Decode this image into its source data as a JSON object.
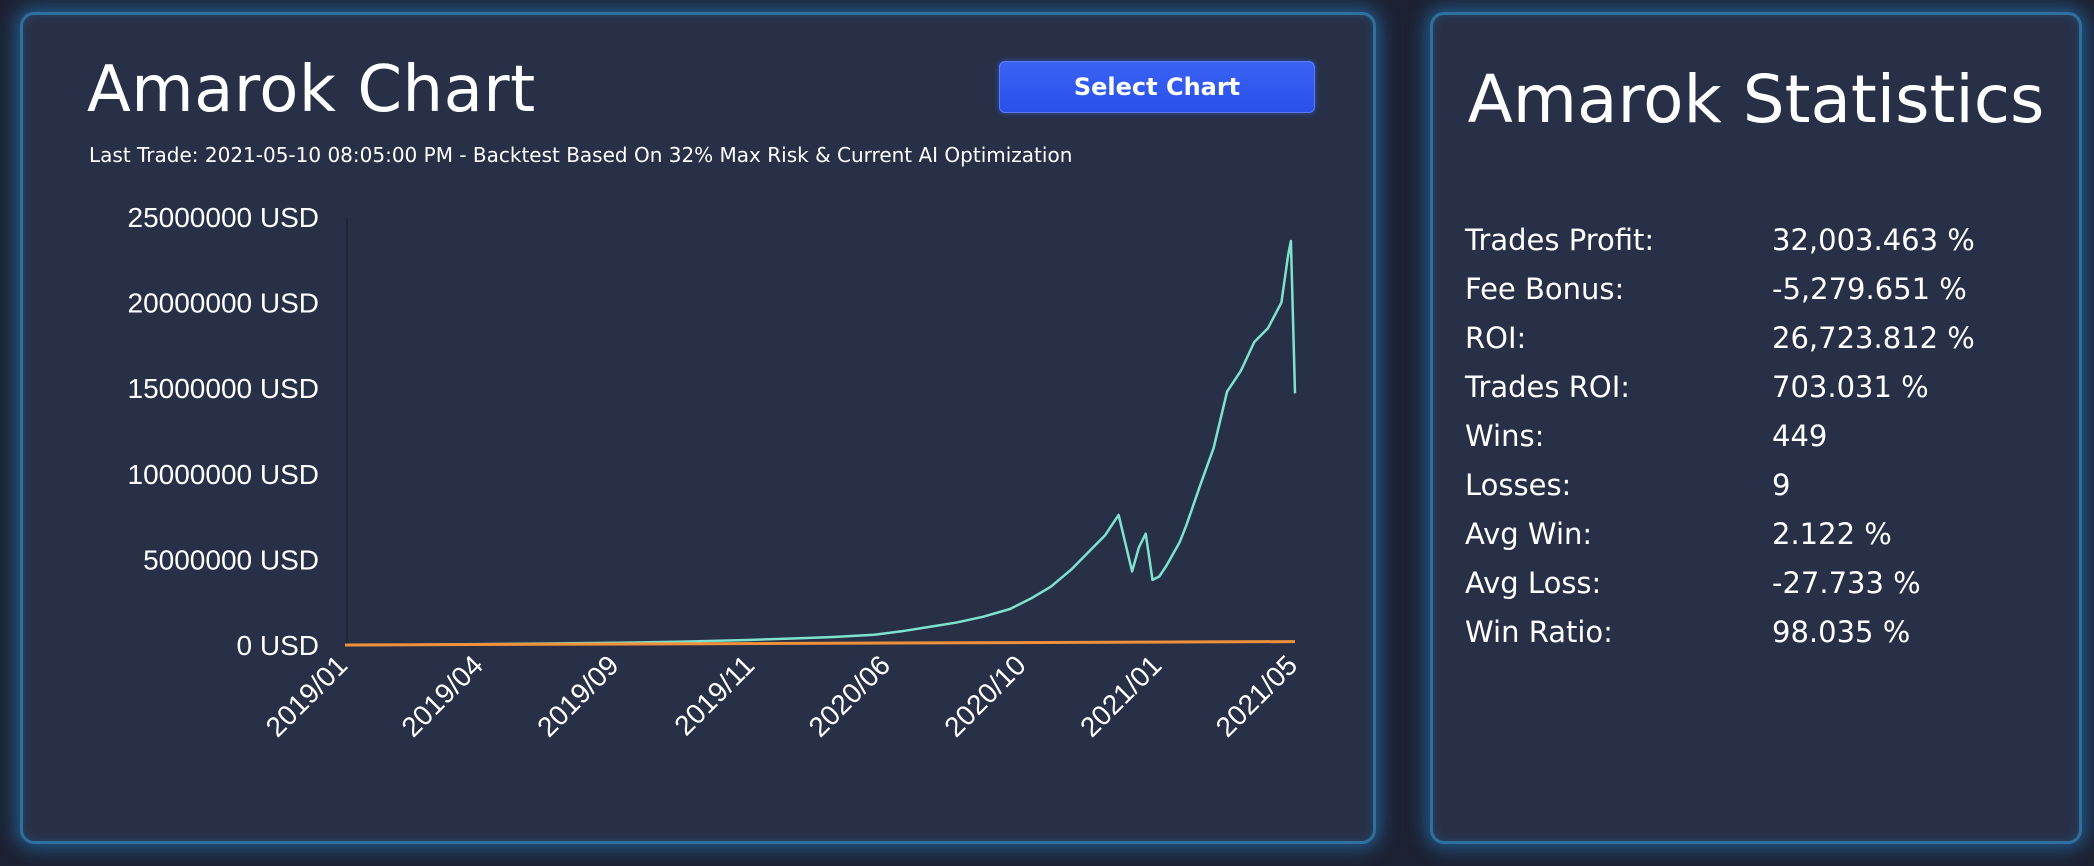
{
  "chart_panel": {
    "title": "Amarok Chart",
    "subtitle": "Last Trade: 2021-05-10 08:05:00 PM - Backtest Based On 32% Max Risk & Current AI Optimization",
    "select_button_label": "Select Chart"
  },
  "chart_data": {
    "type": "line",
    "title": "",
    "xlabel": "",
    "ylabel": "",
    "ylim": [
      0,
      25000000
    ],
    "y_ticks": [
      "0 USD",
      "5000000 USD",
      "10000000 USD",
      "15000000 USD",
      "20000000 USD",
      "25000000 USD"
    ],
    "x_ticks": [
      "2019/01",
      "2019/04",
      "2019/09",
      "2019/11",
      "2020/06",
      "2020/10",
      "2021/01",
      "2021/05"
    ],
    "grid": false,
    "legend": "none",
    "series": [
      {
        "color": "#7de3cf",
        "x": [
          0,
          0.5,
          1,
          1.5,
          2,
          2.5,
          3,
          3.3,
          3.6,
          3.9,
          4.1,
          4.3,
          4.5,
          4.7,
          4.9,
          5.05,
          5.2,
          5.35,
          5.5,
          5.6,
          5.7,
          5.8,
          5.85,
          5.9,
          5.95,
          6.0,
          6.05,
          6.1,
          6.15,
          6.2,
          6.3,
          6.4,
          6.5,
          6.6,
          6.7,
          6.8,
          6.9,
          6.95,
          6.97,
          7.0
        ],
        "values": [
          0,
          20000,
          50000,
          90000,
          130000,
          200000,
          300000,
          380000,
          470000,
          600000,
          800000,
          1050000,
          1300000,
          1650000,
          2100000,
          2700000,
          3400000,
          4400000,
          5600000,
          6400000,
          7600000,
          4300000,
          5700000,
          6500000,
          3800000,
          4000000,
          4600000,
          5300000,
          6000000,
          7000000,
          9300000,
          11500000,
          14800000,
          16000000,
          17700000,
          18500000,
          20000000,
          22800000,
          23600000,
          14700000
        ]
      },
      {
        "color": "#f0913a",
        "x": [
          0,
          7.0
        ],
        "values": [
          0,
          200000
        ]
      }
    ]
  },
  "stats_panel": {
    "title": "Amarok Statistics",
    "rows": [
      {
        "label": "Trades Profit:",
        "value": "32,003.463 %"
      },
      {
        "label": "Fee Bonus:",
        "value": "-5,279.651 %"
      },
      {
        "label": "ROI:",
        "value": "26,723.812 %"
      },
      {
        "label": "Trades ROI:",
        "value": "703.031 %"
      },
      {
        "label": "Wins:",
        "value": "449"
      },
      {
        "label": "Losses:",
        "value": "9"
      },
      {
        "label": "Avg Win:",
        "value": "2.122 %"
      },
      {
        "label": "Avg Loss:",
        "value": "-27.733 %"
      },
      {
        "label": "Win Ratio:",
        "value": "98.035 %"
      }
    ]
  }
}
